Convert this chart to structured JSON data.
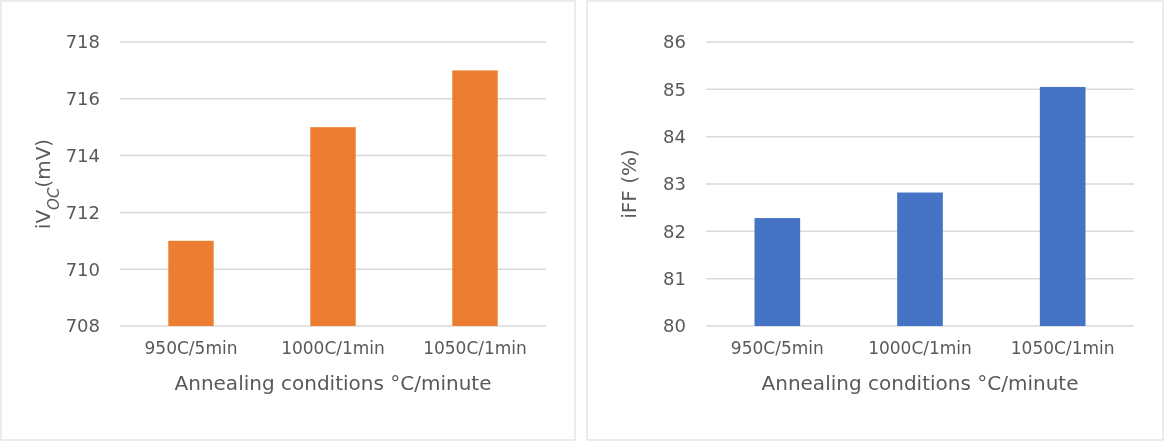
{
  "chart_data": [
    {
      "type": "bar",
      "categories": [
        "950C/5min",
        "1000C/1min",
        "1050C/1min"
      ],
      "values": [
        711,
        715,
        717
      ],
      "color": "#ed7d31",
      "ylim": [
        708,
        718
      ],
      "yticks": [
        708,
        710,
        712,
        714,
        716,
        718
      ],
      "grid": "y",
      "xlabel": "Annealing conditions °C/minute",
      "ylabel": "iV$_{OC}$(mV)"
    },
    {
      "type": "bar",
      "categories": [
        "950C/5min",
        "1000C/1min",
        "1050C/1min"
      ],
      "values": [
        82.28,
        82.82,
        85.05
      ],
      "color": "#4472c4",
      "ylim": [
        80,
        86
      ],
      "yticks": [
        80,
        81,
        82,
        83,
        84,
        85,
        86
      ],
      "grid": "y",
      "xlabel": "Annealing conditions °C/minute",
      "ylabel": "iFF (%)"
    }
  ]
}
